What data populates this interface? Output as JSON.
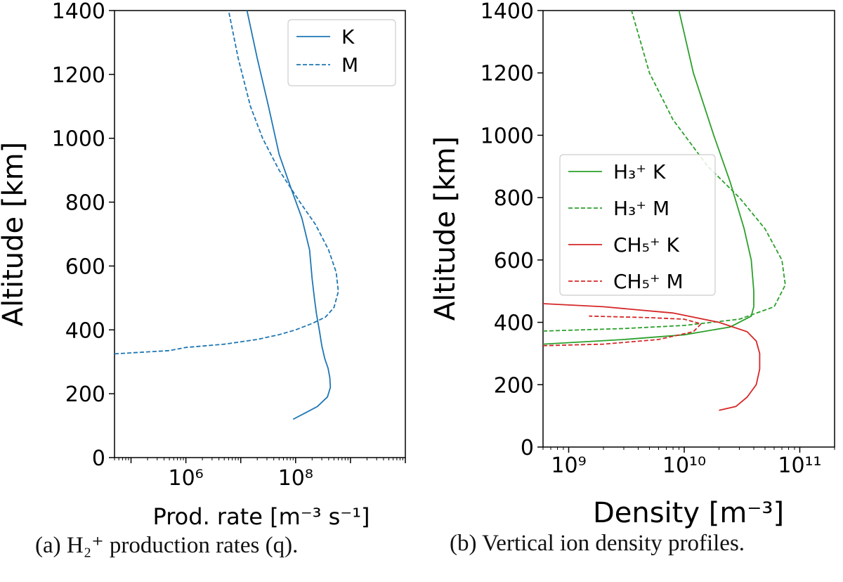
{
  "chart_data": [
    {
      "id": "a",
      "type": "line",
      "xscale": "log",
      "xlim": [
        50000,
        10000000000
      ],
      "ylim": [
        0,
        1400
      ],
      "xticks": [
        1000000,
        100000000
      ],
      "yticks": [
        0,
        200,
        400,
        600,
        800,
        1000,
        1200,
        1400
      ],
      "xlabel": "Prod. rate [m⁻³ s⁻¹]",
      "ylabel": "Altitude [km]",
      "legend": "top-right",
      "caption": "(a) H₂⁺ production rates (q).",
      "series": [
        {
          "name": "K",
          "color": "#1f77b4",
          "dash": "solid",
          "x": [
            90000000,
            150000000,
            250000000,
            380000000,
            430000000,
            420000000,
            390000000,
            340000000,
            300000000,
            270000000,
            240000000,
            220000000,
            200000000,
            180000000,
            130000000,
            80000000,
            50000000,
            32000000,
            20000000,
            13000000
          ],
          "y": [
            120,
            140,
            160,
            190,
            220,
            250,
            280,
            310,
            350,
            400,
            450,
            500,
            560,
            650,
            750,
            850,
            950,
            1100,
            1250,
            1400
          ]
        },
        {
          "name": "M",
          "color": "#1f77b4",
          "dash": "dashed",
          "x": [
            50000,
            500000,
            1000000,
            5000000,
            20000000,
            50000000,
            100000000,
            200000000,
            350000000,
            500000000,
            600000000,
            550000000,
            400000000,
            230000000,
            120000000,
            50000000,
            25000000,
            15000000,
            9000000,
            6000000
          ],
          "y": [
            325,
            335,
            345,
            355,
            370,
            385,
            400,
            420,
            440,
            470,
            520,
            580,
            650,
            730,
            800,
            900,
            1000,
            1100,
            1250,
            1400
          ]
        }
      ]
    },
    {
      "id": "b",
      "type": "line",
      "xscale": "log",
      "xlim": [
        600000000,
        200000000000
      ],
      "ylim": [
        0,
        1400
      ],
      "xticks": [
        1000000000,
        10000000000,
        100000000000
      ],
      "yticks": [
        0,
        200,
        400,
        600,
        800,
        1000,
        1200,
        1400
      ],
      "xlabel": "Density [m⁻³]",
      "ylabel": "Altitude [km]",
      "legend": "center-left",
      "caption": "(b) Vertical ion density profiles.",
      "series": [
        {
          "name": "H₃⁺ K",
          "color": "#2ca02c",
          "dash": "solid",
          "x": [
            600000000,
            3000000000,
            10000000000,
            25000000000,
            38000000000,
            40000000000,
            40000000000,
            38000000000,
            33000000000,
            25000000000,
            18000000000,
            12000000000,
            9000000000
          ],
          "y": [
            330,
            345,
            360,
            385,
            420,
            450,
            500,
            600,
            700,
            850,
            1000,
            1200,
            1400
          ]
        },
        {
          "name": "H₃⁺ M",
          "color": "#2ca02c",
          "dash": "dashed",
          "x": [
            600000000,
            3000000000,
            10000000000,
            30000000000,
            60000000000,
            75000000000,
            70000000000,
            50000000000,
            30000000000,
            16000000000,
            8000000000,
            5000000000,
            3500000000
          ],
          "y": [
            372,
            380,
            390,
            410,
            450,
            520,
            600,
            700,
            800,
            900,
            1050,
            1200,
            1400
          ]
        },
        {
          "name": "CH₅⁺ K",
          "color": "#d62728",
          "dash": "solid",
          "x": [
            600000000,
            2000000000,
            8000000000,
            20000000000,
            35000000000,
            42000000000,
            45000000000,
            45000000000,
            42000000000,
            35000000000,
            28000000000,
            20000000000
          ],
          "y": [
            460,
            450,
            430,
            400,
            370,
            340,
            300,
            250,
            200,
            160,
            130,
            118
          ]
        },
        {
          "name": "CH₅⁺ M",
          "color": "#d62728",
          "dash": "dashed",
          "x": [
            600000000,
            2000000000,
            6000000000,
            12000000000,
            14000000000,
            10000000000,
            5000000000,
            1500000000
          ],
          "y": [
            325,
            330,
            345,
            370,
            395,
            410,
            415,
            420
          ]
        }
      ]
    }
  ]
}
